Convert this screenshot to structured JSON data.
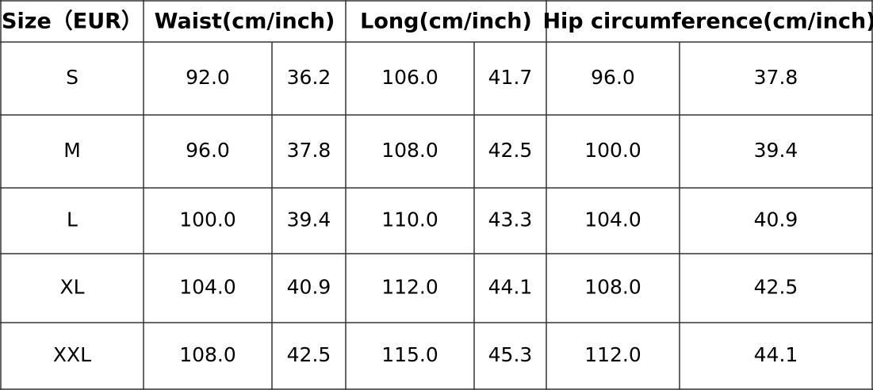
{
  "table": {
    "headers": [
      "Size（EUR）",
      "Waist(cm/inch)",
      "Long(cm/inch)",
      "Hip circumference(cm/inch)"
    ],
    "rows": [
      [
        "S",
        "92.0",
        "36.2",
        "106.0",
        "41.7",
        "96.0",
        "37.8"
      ],
      [
        "M",
        "96.0",
        "37.8",
        "108.0",
        "42.5",
        "100.0",
        "39.4"
      ],
      [
        "L",
        "100.0",
        "39.4",
        "110.0",
        "43.3",
        "104.0",
        "40.9"
      ],
      [
        "XL",
        "104.0",
        "40.9",
        "112.0",
        "44.1",
        "108.0",
        "42.5"
      ],
      [
        "XXL",
        "108.0",
        "42.5",
        "115.0",
        "45.3",
        "112.0",
        "44.1"
      ]
    ]
  }
}
